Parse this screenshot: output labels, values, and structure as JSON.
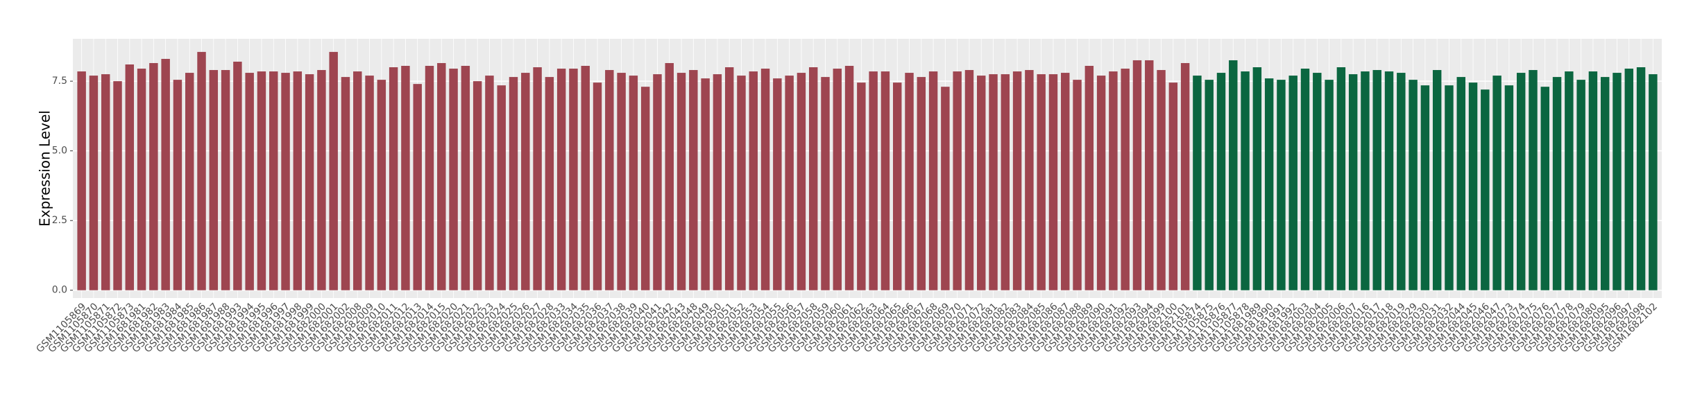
{
  "chart_data": {
    "type": "bar",
    "y_label": "Expression Level",
    "ylim": [
      -0.28,
      9.02
    ],
    "yticks": [
      {
        "value": 0,
        "label": "0.0"
      },
      {
        "value": 2.5,
        "label": "2.5"
      },
      {
        "value": 5,
        "label": "5.0"
      },
      {
        "value": 7.5,
        "label": "7.5"
      }
    ],
    "grid": true,
    "series": [
      {
        "color": "#9e4550",
        "categories": [
          "GSM1105869",
          "GSM1105870",
          "GSM1105871",
          "GSM1105872",
          "GSM1105873",
          "GSM1681981",
          "GSM1681982",
          "GSM1681983",
          "GSM1681984",
          "GSM1681985",
          "GSM1681986",
          "GSM1681987",
          "GSM1681988",
          "GSM1681993",
          "GSM1681994",
          "GSM1681995",
          "GSM1681996",
          "GSM1681997",
          "GSM1681998",
          "GSM1681999",
          "GSM1682000",
          "GSM1682001",
          "GSM1682002",
          "GSM1682008",
          "GSM1682009",
          "GSM1682010",
          "GSM1682011",
          "GSM1682012",
          "GSM1682013",
          "GSM1682014",
          "GSM1682015",
          "GSM1682020",
          "GSM1682021",
          "GSM1682022",
          "GSM1682023",
          "GSM1682024",
          "GSM1682025",
          "GSM1682026",
          "GSM1682027",
          "GSM1682028",
          "GSM1682033",
          "GSM1682034",
          "GSM1682035",
          "GSM1682036",
          "GSM1682037",
          "GSM1682038",
          "GSM1682039",
          "GSM1682040",
          "GSM1682041",
          "GSM1682042",
          "GSM1682043",
          "GSM1682048",
          "GSM1682049",
          "GSM1682050",
          "GSM1682051",
          "GSM1682052",
          "GSM1682053",
          "GSM1682054",
          "GSM1682055",
          "GSM1682056",
          "GSM1682057",
          "GSM1682058",
          "GSM1682059",
          "GSM1682060",
          "GSM1682061",
          "GSM1682062",
          "GSM1682063",
          "GSM1682064",
          "GSM1682065",
          "GSM1682066",
          "GSM1682067",
          "GSM1682068",
          "GSM1682069",
          "GSM1682070",
          "GSM1682071",
          "GSM1682072",
          "GSM1682081",
          "GSM1682082",
          "GSM1682083",
          "GSM1682084",
          "GSM1682085",
          "GSM1682086",
          "GSM1682087",
          "GSM1682088",
          "GSM1682089",
          "GSM1682090",
          "GSM1682091",
          "GSM1682092",
          "GSM1682093",
          "GSM1682094",
          "GSM1682099",
          "GSM1682100",
          "GSM1682101"
        ],
        "values": [
          7.85,
          7.7,
          7.75,
          7.5,
          8.1,
          7.95,
          8.15,
          8.3,
          7.55,
          7.8,
          8.55,
          7.9,
          7.9,
          8.2,
          7.8,
          7.85,
          7.85,
          7.8,
          7.85,
          7.75,
          7.9,
          8.55,
          7.65,
          7.85,
          7.7,
          7.55,
          8.0,
          8.05,
          7.4,
          8.05,
          8.15,
          7.95,
          8.05,
          7.5,
          7.7,
          7.35,
          7.65,
          7.8,
          8.0,
          7.65,
          7.95,
          7.95,
          8.05,
          7.45,
          7.9,
          7.8,
          7.7,
          7.3,
          7.75,
          8.15,
          7.8,
          7.9,
          7.6,
          7.75,
          8.0,
          7.7,
          7.85,
          7.95,
          7.6,
          7.7,
          7.8,
          8.0,
          7.65,
          7.95,
          8.05,
          7.45,
          7.85,
          7.85,
          7.45,
          7.8,
          7.65,
          7.85,
          7.3,
          7.85,
          7.9,
          7.7,
          7.75,
          7.75,
          7.85,
          7.9,
          7.75,
          7.75,
          7.8,
          7.55,
          8.05,
          7.7,
          7.85,
          7.95,
          8.25,
          8.25,
          7.9,
          7.45,
          8.15
        ]
      },
      {
        "color": "#0b6640",
        "categories": [
          "GSM1105874",
          "GSM1105875",
          "GSM1105876",
          "GSM1105877",
          "GSM1105878",
          "GSM1681989",
          "GSM1681990",
          "GSM1681991",
          "GSM1681992",
          "GSM1682003",
          "GSM1682004",
          "GSM1682005",
          "GSM1682006",
          "GSM1682007",
          "GSM1682016",
          "GSM1682017",
          "GSM1682018",
          "GSM1682019",
          "GSM1682029",
          "GSM1682030",
          "GSM1682031",
          "GSM1682032",
          "GSM1682044",
          "GSM1682045",
          "GSM1682046",
          "GSM1682047",
          "GSM1682073",
          "GSM1682074",
          "GSM1682075",
          "GSM1682076",
          "GSM1682077",
          "GSM1682078",
          "GSM1682079",
          "GSM1682080",
          "GSM1682095",
          "GSM1682096",
          "GSM1682097",
          "GSM1682098",
          "GSM1682102"
        ],
        "values": [
          7.7,
          7.55,
          7.8,
          8.25,
          7.85,
          8.0,
          7.6,
          7.55,
          7.7,
          7.95,
          7.8,
          7.55,
          8.0,
          7.75,
          7.85,
          7.9,
          7.85,
          7.8,
          7.55,
          7.35,
          7.9,
          7.35,
          7.65,
          7.45,
          7.2,
          7.7,
          7.35,
          7.8,
          7.9,
          7.3,
          7.65,
          7.85,
          7.55,
          7.85,
          7.65,
          7.8,
          7.95,
          8.0,
          7.75
        ]
      }
    ]
  }
}
